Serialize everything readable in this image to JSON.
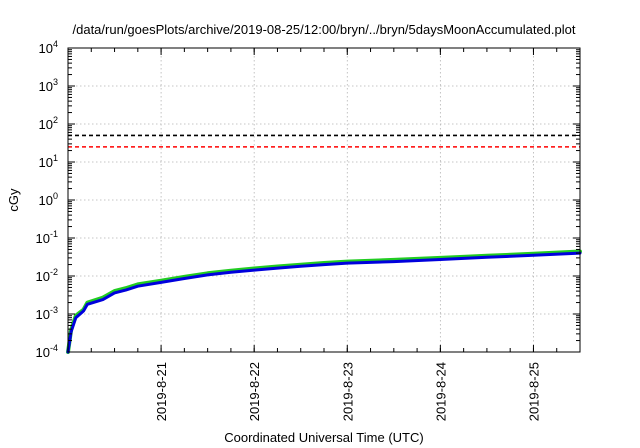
{
  "chart_data": {
    "type": "line",
    "title": "/data/run/goesPlots/archive/2019-08-25/12:00/bryn/../bryn/5daysMoonAccumulated.plot",
    "xlabel": "Coordinated Universal Time (UTC)",
    "ylabel": "cGy",
    "yscale": "log",
    "ylim": [
      0.0001,
      10000
    ],
    "xlim": [
      "2019-08-20 00:00",
      "2019-08-25 12:00"
    ],
    "grid": true,
    "x_ticks": [
      "2019-8-21",
      "2019-8-22",
      "2019-8-23",
      "2019-8-24",
      "2019-8-25"
    ],
    "y_ticks": [
      {
        "base": "10",
        "exp": "-4",
        "value": 0.0001
      },
      {
        "base": "10",
        "exp": "-3",
        "value": 0.001
      },
      {
        "base": "10",
        "exp": "-2",
        "value": 0.01
      },
      {
        "base": "10",
        "exp": "-1",
        "value": 0.1
      },
      {
        "base": "10",
        "exp": "0",
        "value": 1
      },
      {
        "base": "10",
        "exp": "1",
        "value": 10
      },
      {
        "base": "10",
        "exp": "2",
        "value": 100
      },
      {
        "base": "10",
        "exp": "3",
        "value": 1000
      },
      {
        "base": "10",
        "exp": "4",
        "value": 10000
      }
    ],
    "reference_lines": [
      {
        "y": 50,
        "color": "#000000",
        "style": "dashed"
      },
      {
        "y": 25,
        "color": "#ff0000",
        "style": "dashed"
      }
    ],
    "series": [
      {
        "color": "#22cc22",
        "x": [
          "2019-08-20 00:00",
          "2019-08-20 00:48",
          "2019-08-20 02:00",
          "2019-08-20 04:00",
          "2019-08-20 05:00",
          "2019-08-20 09:00",
          "2019-08-20 12:00",
          "2019-08-20 15:00",
          "2019-08-20 18:00",
          "2019-08-21 00:00",
          "2019-08-21 06:00",
          "2019-08-21 12:00",
          "2019-08-21 18:00",
          "2019-08-22 00:00",
          "2019-08-22 06:00",
          "2019-08-22 12:00",
          "2019-08-22 18:00",
          "2019-08-23 00:00",
          "2019-08-23 12:00",
          "2019-08-24 00:00",
          "2019-08-24 12:00",
          "2019-08-25 00:00",
          "2019-08-25 12:00"
        ],
        "y": [
          0.0001,
          0.00038,
          0.0009,
          0.0013,
          0.002,
          0.0027,
          0.004,
          0.0048,
          0.006,
          0.0075,
          0.0095,
          0.0118,
          0.0138,
          0.0158,
          0.0178,
          0.0198,
          0.022,
          0.024,
          0.0265,
          0.03,
          0.034,
          0.0385,
          0.044
        ]
      },
      {
        "color": "#0000dd",
        "x": [
          "2019-08-20 00:00",
          "2019-08-20 00:48",
          "2019-08-20 02:00",
          "2019-08-20 04:00",
          "2019-08-20 05:00",
          "2019-08-20 09:00",
          "2019-08-20 12:00",
          "2019-08-20 15:00",
          "2019-08-20 18:00",
          "2019-08-21 00:00",
          "2019-08-21 06:00",
          "2019-08-21 12:00",
          "2019-08-21 18:00",
          "2019-08-22 00:00",
          "2019-08-22 06:00",
          "2019-08-22 12:00",
          "2019-08-22 18:00",
          "2019-08-23 00:00",
          "2019-08-23 12:00",
          "2019-08-24 00:00",
          "2019-08-24 12:00",
          "2019-08-25 00:00",
          "2019-08-25 12:00"
        ],
        "y": [
          0.0001,
          0.00034,
          0.0008,
          0.0012,
          0.0018,
          0.0024,
          0.0036,
          0.0043,
          0.0054,
          0.0068,
          0.0086,
          0.0107,
          0.0125,
          0.0143,
          0.0161,
          0.018,
          0.02,
          0.0218,
          0.024,
          0.0272,
          0.031,
          0.035,
          0.04
        ]
      }
    ]
  }
}
